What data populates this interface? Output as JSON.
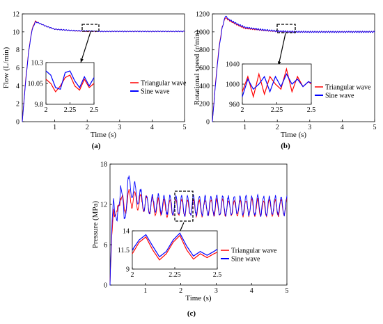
{
  "figure": {
    "colors": {
      "triangular": "#ff0000",
      "sine": "#0000ff",
      "axis": "#000000"
    }
  },
  "chart_data": [
    {
      "panel": "(a)",
      "type": "line",
      "xlabel": "Time (s)",
      "ylabel": "Flow (L/min)",
      "xlim": [
        0,
        5
      ],
      "ylim": [
        0,
        12
      ],
      "xticks": [
        1,
        2,
        3,
        4,
        5
      ],
      "yticks": [
        0,
        2,
        4,
        6,
        8,
        10,
        12
      ],
      "legend": [
        "Triangular wave",
        "Sine wave"
      ],
      "legend_placement": "center-right",
      "series": [
        {
          "name": "Triangular wave",
          "x": [
            0.0,
            0.1,
            0.2,
            0.3,
            0.4,
            0.5,
            0.75,
            1.0,
            1.5,
            2.0,
            2.5,
            3.0,
            3.5,
            4.0,
            4.5,
            5.0
          ],
          "y": [
            0.0,
            4.5,
            8.0,
            10.3,
            11.2,
            11.0,
            10.6,
            10.3,
            10.15,
            10.05,
            10.05,
            10.05,
            10.05,
            10.05,
            10.05,
            10.05
          ]
        },
        {
          "name": "Sine wave",
          "x": [
            0.0,
            0.1,
            0.2,
            0.3,
            0.4,
            0.5,
            0.75,
            1.0,
            1.5,
            2.0,
            2.5,
            3.0,
            3.5,
            4.0,
            4.5,
            5.0
          ],
          "y": [
            0.0,
            4.3,
            7.9,
            10.2,
            11.1,
            11.0,
            10.6,
            10.3,
            10.15,
            10.1,
            10.05,
            10.05,
            10.05,
            10.05,
            10.05,
            10.05
          ]
        }
      ],
      "inset": {
        "xlim": [
          2,
          2.5
        ],
        "ylim": [
          9.8,
          10.3
        ],
        "xticks": [
          2,
          2.25,
          2.5
        ],
        "yticks": [
          9.8,
          10.05,
          10.3
        ],
        "series": [
          {
            "name": "Triangular wave",
            "x": [
              2.0,
              2.05,
              2.1,
              2.15,
              2.2,
              2.25,
              2.3,
              2.35,
              2.4,
              2.45,
              2.5
            ],
            "y": [
              10.1,
              10.05,
              9.95,
              10.02,
              10.12,
              10.15,
              10.02,
              9.97,
              10.1,
              10.0,
              10.05
            ]
          },
          {
            "name": "Sine wave",
            "x": [
              2.0,
              2.05,
              2.1,
              2.15,
              2.2,
              2.25,
              2.3,
              2.35,
              2.4,
              2.45,
              2.5
            ],
            "y": [
              10.2,
              10.15,
              10.0,
              9.98,
              10.18,
              10.2,
              10.08,
              10.0,
              10.13,
              10.02,
              10.12
            ]
          }
        ]
      }
    },
    {
      "panel": "(b)",
      "type": "line",
      "xlabel": "Time (s)",
      "ylabel": "Rotational speed (r/min)",
      "xlim": [
        0,
        5
      ],
      "ylim": [
        0,
        1200
      ],
      "xticks": [
        1,
        2,
        3,
        4,
        5
      ],
      "yticks": [
        0,
        200,
        400,
        600,
        800,
        1000,
        1200
      ],
      "legend": [
        "Triangular wave",
        "Sine wave"
      ],
      "legend_placement": "center-right",
      "series": [
        {
          "name": "Triangular wave",
          "x": [
            0.0,
            0.1,
            0.2,
            0.3,
            0.4,
            0.5,
            0.75,
            1.0,
            1.5,
            2.0,
            2.5,
            3.0,
            3.5,
            4.0,
            4.5,
            5.0
          ],
          "y": [
            0,
            450,
            820,
            1050,
            1160,
            1130,
            1080,
            1040,
            1020,
            1005,
            1000,
            1000,
            1000,
            1000,
            1000,
            1000
          ]
        },
        {
          "name": "Sine wave",
          "x": [
            0.0,
            0.1,
            0.2,
            0.3,
            0.4,
            0.5,
            0.75,
            1.0,
            1.5,
            2.0,
            2.5,
            3.0,
            3.5,
            4.0,
            4.5,
            5.0
          ],
          "y": [
            0,
            430,
            800,
            1040,
            1180,
            1140,
            1090,
            1050,
            1025,
            1008,
            1002,
            1000,
            1000,
            1000,
            1000,
            1000
          ]
        }
      ],
      "inset": {
        "xlim": [
          2,
          2.5
        ],
        "ylim": [
          960,
          1040
        ],
        "xticks": [
          2,
          2.25,
          2.5
        ],
        "yticks": [
          960,
          1000,
          1040
        ],
        "series": [
          {
            "name": "Triangular wave",
            "x": [
              2.0,
              2.04,
              2.08,
              2.12,
              2.16,
              2.2,
              2.24,
              2.28,
              2.32,
              2.36,
              2.4,
              2.44,
              2.48,
              2.5
            ],
            "y": [
              985,
              1015,
              975,
              1020,
              980,
              1015,
              1000,
              990,
              1030,
              985,
              1015,
              995,
              1005,
              1000
            ]
          },
          {
            "name": "Sine wave",
            "x": [
              2.0,
              2.04,
              2.08,
              2.12,
              2.16,
              2.2,
              2.24,
              2.28,
              2.32,
              2.36,
              2.4,
              2.44,
              2.48,
              2.5
            ],
            "y": [
              975,
              1010,
              990,
              1000,
              1015,
              985,
              1015,
              995,
              1020,
              1000,
              1010,
              995,
              1005,
              1002
            ]
          }
        ]
      }
    },
    {
      "panel": "(c)",
      "type": "line",
      "xlabel": "Time (s)",
      "ylabel": "Pressure (MPa)",
      "xlim": [
        0,
        5
      ],
      "ylim": [
        0,
        18
      ],
      "xticks": [
        1,
        2,
        3,
        4,
        5
      ],
      "yticks": [
        0,
        6,
        12,
        18
      ],
      "legend": [
        "Triangular wave",
        "Sine wave"
      ],
      "legend_placement": "lower-right",
      "series": [
        {
          "name": "Triangular wave",
          "x": [
            0.0,
            0.1,
            0.2,
            0.3,
            0.4,
            0.5,
            1.0,
            1.5,
            2.0,
            2.5,
            3.0,
            3.5,
            4.0,
            4.5,
            5.0
          ],
          "y": [
            0,
            12,
            10,
            14,
            11,
            13,
            12,
            11.5,
            11.5,
            11.5,
            11.5,
            11.5,
            11.5,
            11.5,
            11.5
          ]
        },
        {
          "name": "Sine wave",
          "x": [
            0.0,
            0.1,
            0.2,
            0.3,
            0.4,
            0.5,
            1.0,
            1.5,
            2.0,
            2.5,
            3.0,
            3.5,
            4.0,
            4.5,
            5.0
          ],
          "y": [
            0,
            14,
            8,
            16,
            9,
            15,
            12,
            12,
            11.8,
            11.8,
            11.8,
            11.8,
            11.8,
            11.8,
            11.8
          ]
        }
      ],
      "inset": {
        "xlim": [
          2,
          2.5
        ],
        "ylim": [
          9,
          14
        ],
        "xticks": [
          2,
          2.25,
          2.5
        ],
        "yticks": [
          9,
          11.5,
          14
        ],
        "series": [
          {
            "name": "Triangular wave",
            "x": [
              2.0,
              2.04,
              2.08,
              2.12,
              2.16,
              2.2,
              2.24,
              2.28,
              2.32,
              2.36,
              2.4,
              2.44,
              2.48,
              2.5
            ],
            "y": [
              11.0,
              12.5,
              13.2,
              11.5,
              10.2,
              11.0,
              12.5,
              13.4,
              11.5,
              10.3,
              11.0,
              10.5,
              11.0,
              11.2
            ]
          },
          {
            "name": "Sine wave",
            "x": [
              2.0,
              2.04,
              2.08,
              2.12,
              2.16,
              2.2,
              2.24,
              2.28,
              2.32,
              2.36,
              2.4,
              2.44,
              2.48,
              2.5
            ],
            "y": [
              11.5,
              12.8,
              13.5,
              12.0,
              10.6,
              11.3,
              12.8,
              13.7,
              12.0,
              10.7,
              11.3,
              10.8,
              11.3,
              11.6
            ]
          }
        ]
      }
    }
  ]
}
